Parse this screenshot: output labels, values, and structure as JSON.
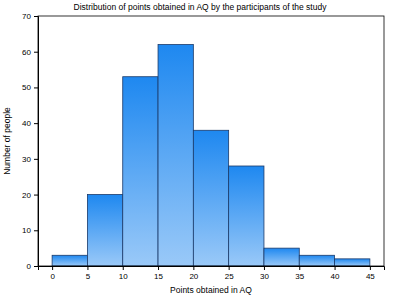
{
  "chart_data": {
    "type": "histogram",
    "title": "Distribution of points obtained in AQ by the participants of the study",
    "x_label": "Points obtained in AQ",
    "y_label": "Number of people",
    "bins": [
      0,
      5,
      10,
      15,
      20,
      25,
      30,
      35,
      40,
      45
    ],
    "values": [
      3,
      20,
      53,
      62,
      38,
      28,
      5,
      3,
      2
    ],
    "color": "#1e88f0",
    "xlim": [
      -2,
      47
    ],
    "xticks": [
      0,
      5,
      10,
      15,
      20,
      25,
      30,
      35,
      40,
      45
    ],
    "ylim": [
      0,
      70
    ],
    "yticks": [
      0,
      10,
      20,
      30,
      40,
      50,
      60,
      70
    ],
    "grid": false
  }
}
